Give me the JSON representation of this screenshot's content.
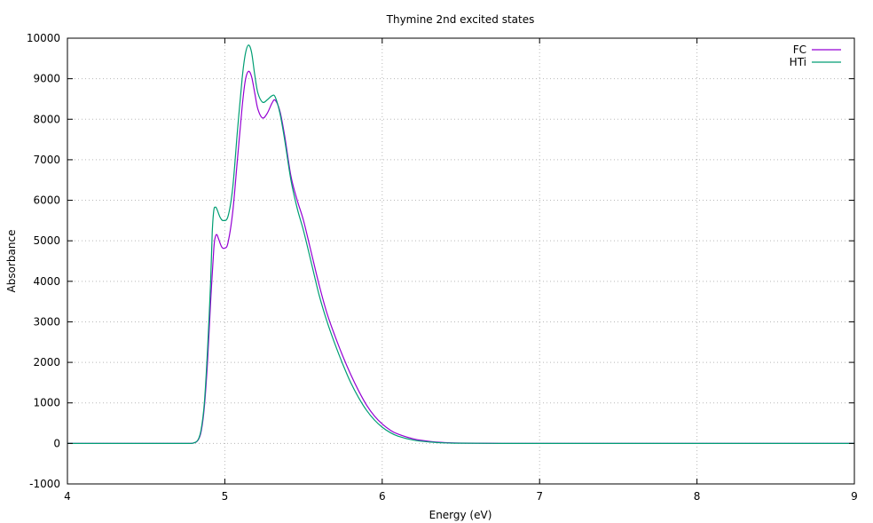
{
  "chart_data": {
    "type": "line",
    "title": "Thymine 2nd excited states",
    "xlabel": "Energy (eV)",
    "ylabel": "Absorbance",
    "xlim": [
      4,
      9
    ],
    "ylim": [
      -1000,
      10000
    ],
    "x_ticks": [
      "4",
      "5",
      "6",
      "7",
      "8",
      "9"
    ],
    "y_ticks": [
      "-1000",
      "0",
      "1000",
      "2000",
      "3000",
      "4000",
      "5000",
      "6000",
      "7000",
      "8000",
      "9000",
      "10000"
    ],
    "grid": true,
    "legend_position": "top-right",
    "series": [
      {
        "name": "FC",
        "color": "#9400d3",
        "points": [
          [
            4.0,
            0
          ],
          [
            4.5,
            0
          ],
          [
            4.75,
            0
          ],
          [
            4.8,
            10
          ],
          [
            4.83,
            80
          ],
          [
            4.85,
            300
          ],
          [
            4.87,
            900
          ],
          [
            4.89,
            2000
          ],
          [
            4.91,
            3500
          ],
          [
            4.93,
            4800
          ],
          [
            4.94,
            5100
          ],
          [
            4.95,
            5150
          ],
          [
            4.96,
            5050
          ],
          [
            4.98,
            4850
          ],
          [
            5.0,
            4820
          ],
          [
            5.02,
            4950
          ],
          [
            5.05,
            5700
          ],
          [
            5.08,
            7000
          ],
          [
            5.11,
            8300
          ],
          [
            5.13,
            8950
          ],
          [
            5.15,
            9180
          ],
          [
            5.17,
            9050
          ],
          [
            5.19,
            8650
          ],
          [
            5.21,
            8250
          ],
          [
            5.24,
            8030
          ],
          [
            5.27,
            8150
          ],
          [
            5.3,
            8400
          ],
          [
            5.32,
            8470
          ],
          [
            5.35,
            8200
          ],
          [
            5.38,
            7600
          ],
          [
            5.42,
            6600
          ],
          [
            5.46,
            6000
          ],
          [
            5.5,
            5500
          ],
          [
            5.55,
            4700
          ],
          [
            5.6,
            3900
          ],
          [
            5.65,
            3200
          ],
          [
            5.7,
            2650
          ],
          [
            5.75,
            2150
          ],
          [
            5.8,
            1700
          ],
          [
            5.85,
            1300
          ],
          [
            5.9,
            950
          ],
          [
            5.95,
            680
          ],
          [
            6.0,
            480
          ],
          [
            6.05,
            330
          ],
          [
            6.1,
            230
          ],
          [
            6.2,
            110
          ],
          [
            6.3,
            50
          ],
          [
            6.4,
            20
          ],
          [
            6.5,
            8
          ],
          [
            6.7,
            2
          ],
          [
            7.0,
            0
          ],
          [
            8.0,
            0
          ],
          [
            9.0,
            0
          ]
        ]
      },
      {
        "name": "HTi",
        "color": "#009e73",
        "points": [
          [
            4.0,
            0
          ],
          [
            4.5,
            0
          ],
          [
            4.75,
            0
          ],
          [
            4.8,
            10
          ],
          [
            4.83,
            90
          ],
          [
            4.85,
            350
          ],
          [
            4.87,
            1000
          ],
          [
            4.89,
            2300
          ],
          [
            4.91,
            4000
          ],
          [
            4.92,
            5200
          ],
          [
            4.93,
            5750
          ],
          [
            4.94,
            5830
          ],
          [
            4.95,
            5780
          ],
          [
            4.97,
            5580
          ],
          [
            4.99,
            5500
          ],
          [
            5.02,
            5600
          ],
          [
            5.05,
            6300
          ],
          [
            5.08,
            7700
          ],
          [
            5.11,
            9000
          ],
          [
            5.13,
            9600
          ],
          [
            5.15,
            9830
          ],
          [
            5.17,
            9650
          ],
          [
            5.19,
            9100
          ],
          [
            5.21,
            8650
          ],
          [
            5.24,
            8420
          ],
          [
            5.27,
            8480
          ],
          [
            5.3,
            8580
          ],
          [
            5.32,
            8550
          ],
          [
            5.35,
            8150
          ],
          [
            5.38,
            7500
          ],
          [
            5.42,
            6500
          ],
          [
            5.46,
            5800
          ],
          [
            5.5,
            5250
          ],
          [
            5.55,
            4450
          ],
          [
            5.6,
            3650
          ],
          [
            5.65,
            3000
          ],
          [
            5.7,
            2450
          ],
          [
            5.75,
            1950
          ],
          [
            5.8,
            1500
          ],
          [
            5.85,
            1130
          ],
          [
            5.9,
            820
          ],
          [
            5.95,
            580
          ],
          [
            6.0,
            400
          ],
          [
            6.05,
            270
          ],
          [
            6.1,
            180
          ],
          [
            6.2,
            80
          ],
          [
            6.3,
            35
          ],
          [
            6.4,
            12
          ],
          [
            6.5,
            5
          ],
          [
            6.7,
            1
          ],
          [
            7.0,
            0
          ],
          [
            8.0,
            0
          ],
          [
            9.0,
            0
          ]
        ]
      }
    ]
  }
}
